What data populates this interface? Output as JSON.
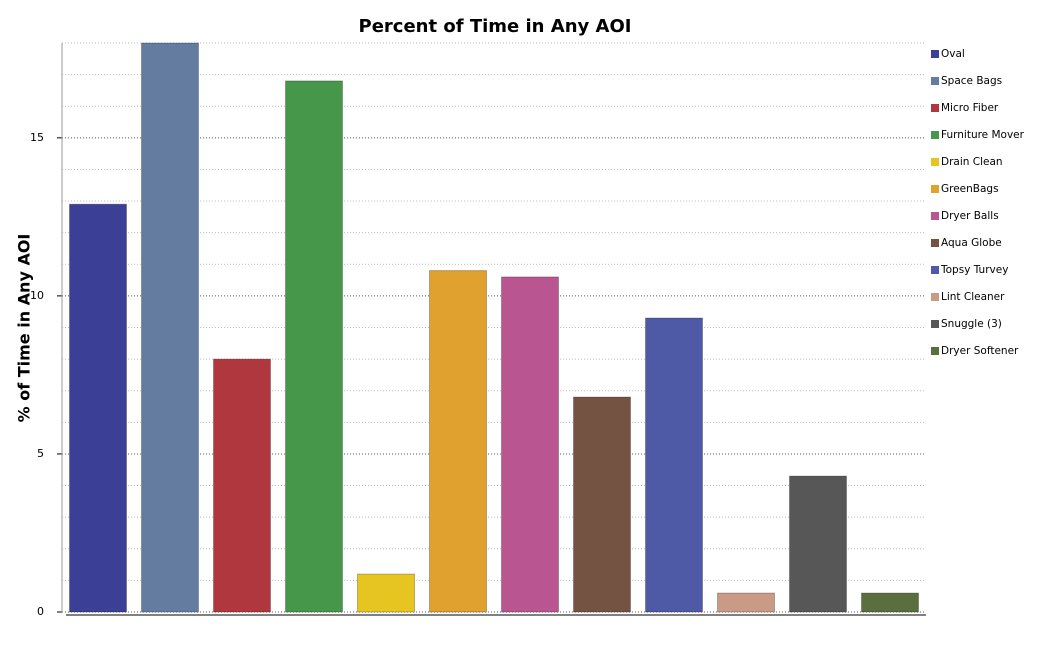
{
  "chart_data": {
    "type": "bar",
    "title": "Percent of Time in Any AOI",
    "y_label": "% of Time in Any AOI",
    "categories": [
      "Oval",
      "Space Bags",
      "Micro Fiber",
      "Furniture Mover",
      "Drain Clean",
      "GreenBags",
      "Dryer Balls",
      "Aqua Globe",
      "Topsy Turvey",
      "Lint Cleaner",
      "Snuggle (3)",
      "Dryer Softener"
    ],
    "values": [
      12.9,
      18.0,
      8.0,
      16.8,
      1.2,
      10.8,
      10.6,
      6.8,
      9.3,
      0.6,
      4.3,
      0.6
    ],
    "colors": [
      "#3b3f96",
      "#647ca0",
      "#b0373d",
      "#47974a",
      "#e7c520",
      "#e0a12e",
      "#b95591",
      "#745343",
      "#4f5aa6",
      "#c99a85",
      "#575757",
      "#5a6e40"
    ],
    "ylim": [
      0,
      18
    ],
    "yticks": [
      0,
      5,
      10,
      15
    ],
    "minor_yticks": [
      1,
      2,
      3,
      4,
      6,
      7,
      8,
      9,
      11,
      12,
      13,
      14,
      16,
      17,
      18
    ],
    "grid": true,
    "legend": "right"
  }
}
